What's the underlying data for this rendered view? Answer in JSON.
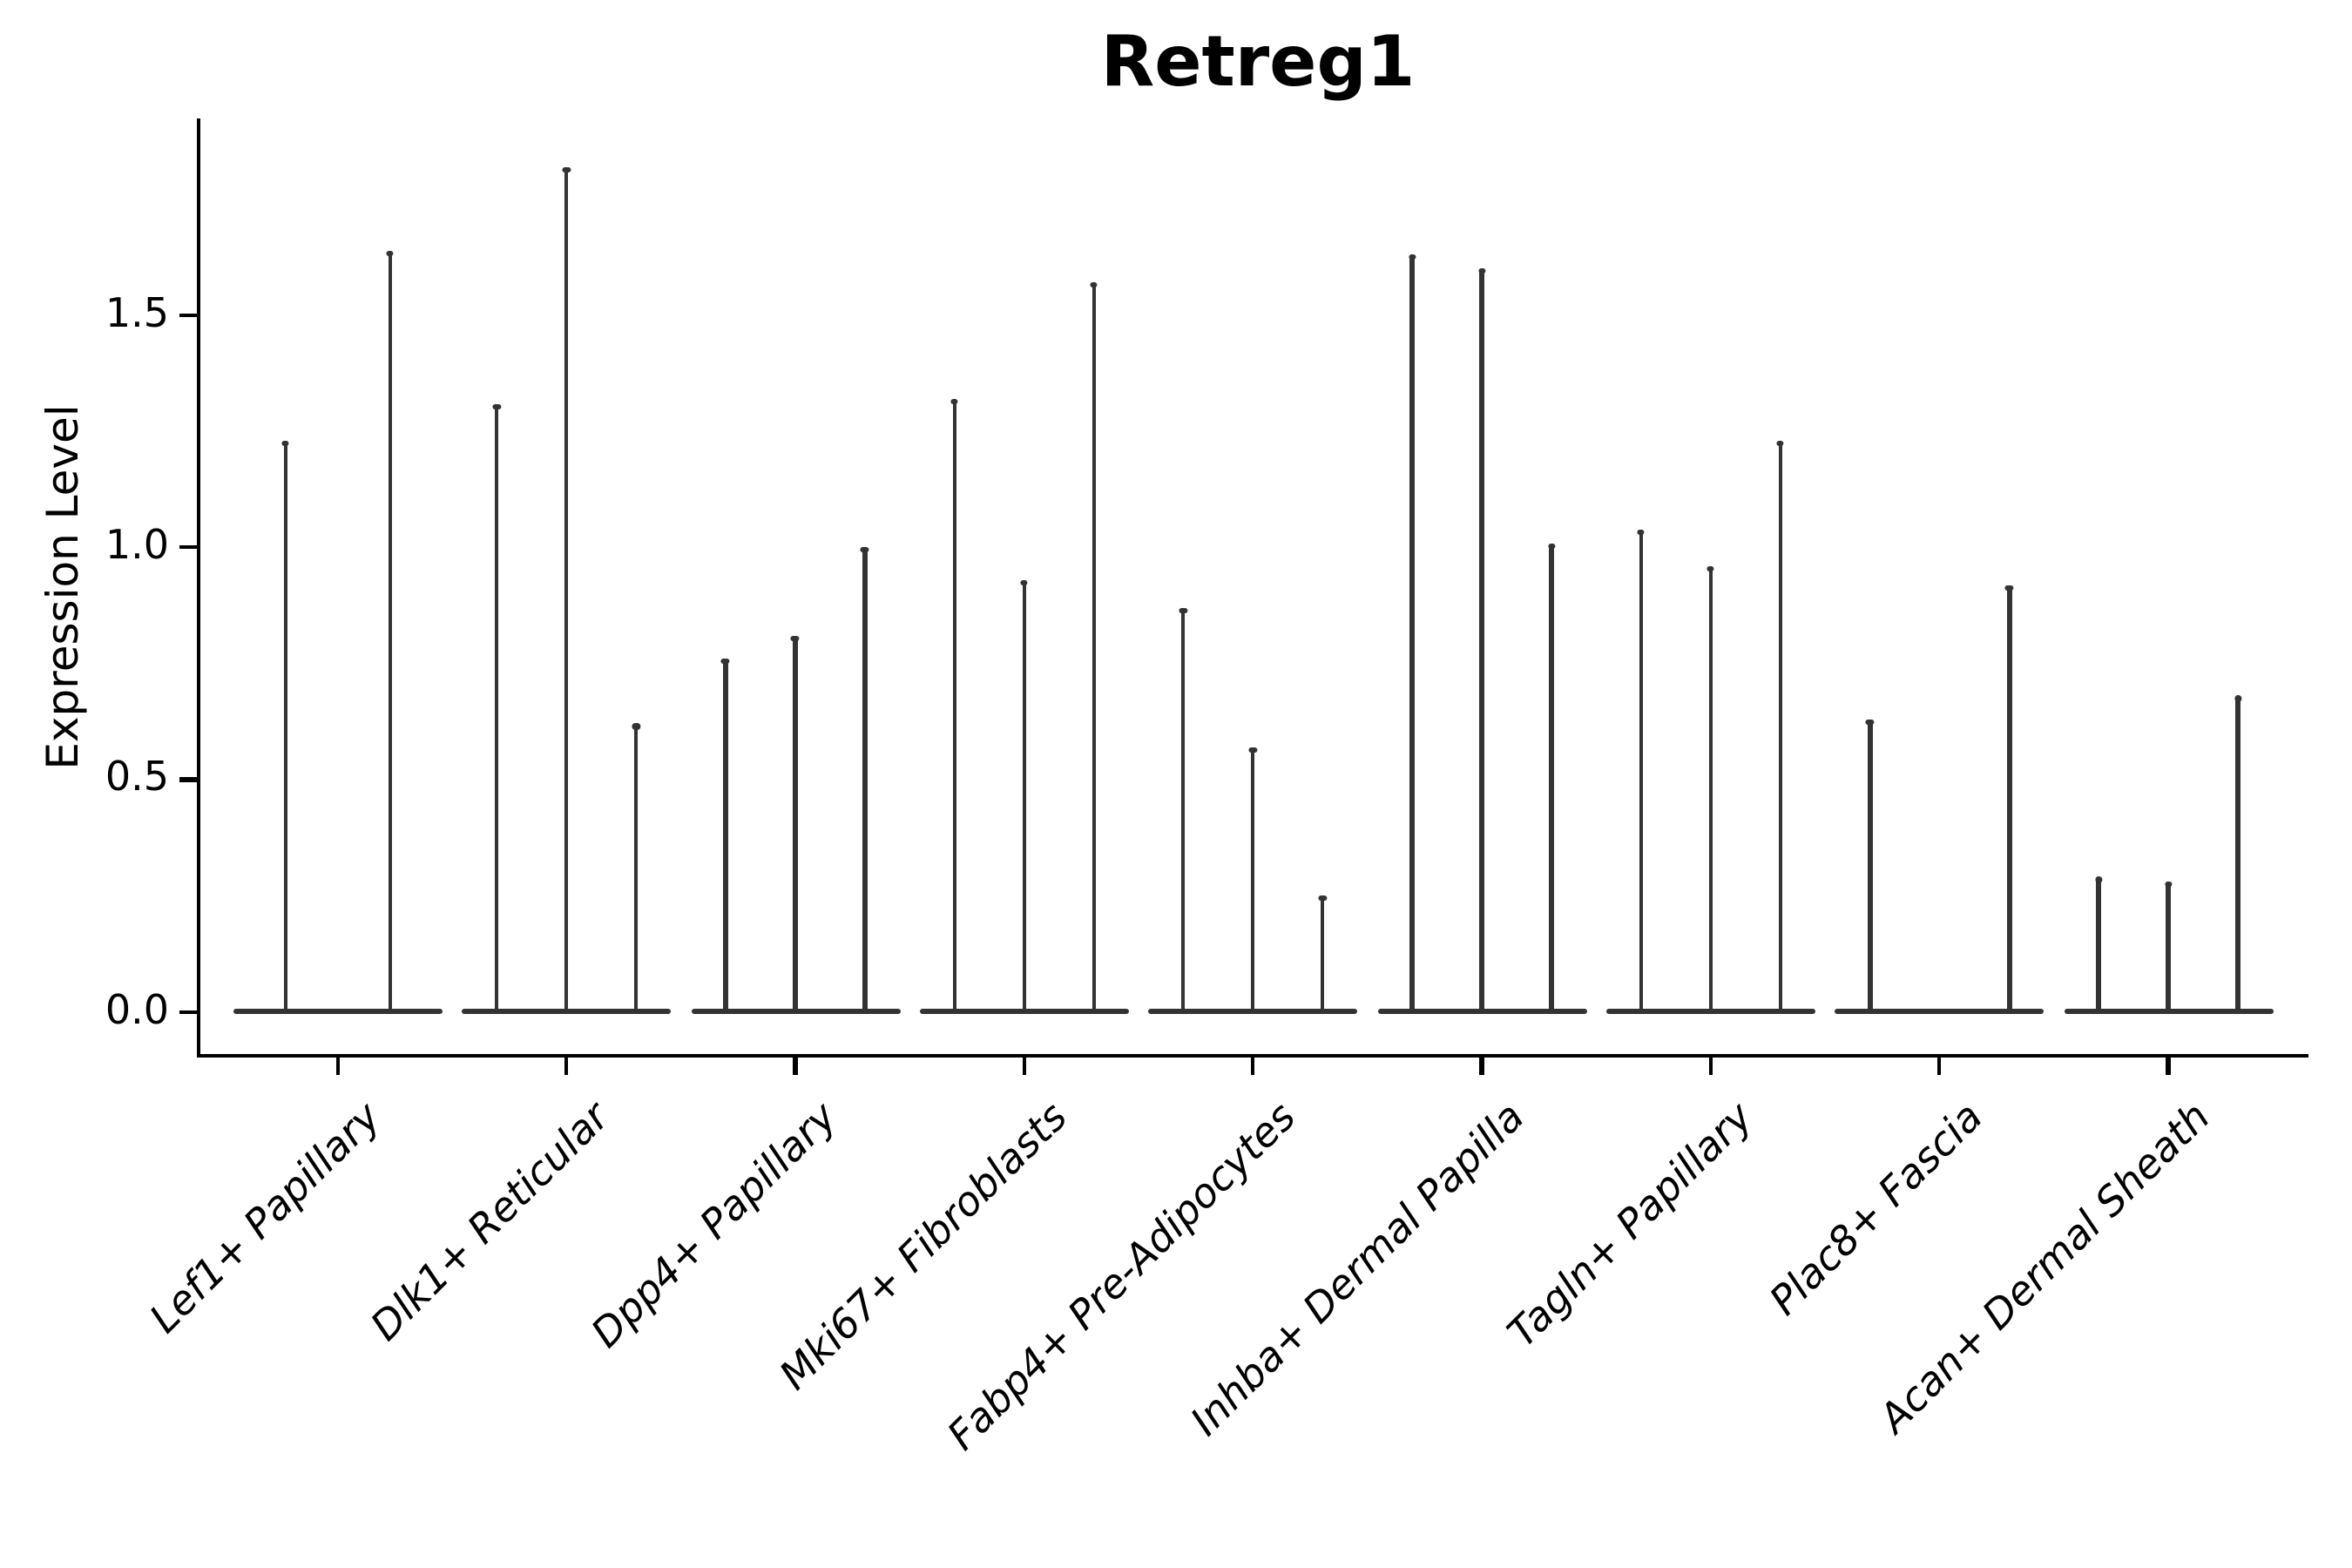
{
  "title": "Retreg1",
  "y_axis": {
    "label": "Expression Level",
    "tick_labels": [
      "0.0",
      "0.5",
      "1.0",
      "1.5"
    ]
  },
  "x_axis": {
    "categories": [
      "Lef1+ Papillary",
      "Dlk1+ Reticular",
      "Dpp4+ Papillary",
      "Mki67+ Fibroblasts",
      "Fabp4+ Pre-Adipocytes",
      "Inhba+ Dermal Papilla",
      "Tagln+ Papillary",
      "Plac8+ Fascia",
      "Acan+ Dermal Sheath"
    ]
  },
  "chart_data": {
    "type": "violin",
    "title": "Retreg1",
    "xlabel": "",
    "ylabel": "Expression Level",
    "ylim": [
      -0.09,
      1.92
    ],
    "y_ticks": [
      0.0,
      0.5,
      1.0,
      1.5
    ],
    "grid": false,
    "legend": "none",
    "note": "Each cluster shows 2-3 extremely narrow violins: a flat dense base at 0 with a hair-thin spike rising to the maximum expression value.",
    "categories": [
      {
        "label": "Lef1+ Papillary",
        "violin_maxima": [
          1.23,
          1.64
        ]
      },
      {
        "label": "Dlk1+ Reticular",
        "violin_maxima": [
          1.31,
          1.82,
          0.62
        ]
      },
      {
        "label": "Dpp4+ Papillary",
        "violin_maxima": [
          0.76,
          0.81,
          1.0
        ]
      },
      {
        "label": "Mki67+ Fibroblasts",
        "violin_maxima": [
          1.32,
          0.93,
          1.57
        ]
      },
      {
        "label": "Fabp4+ Pre-Adipocytes",
        "violin_maxima": [
          0.87,
          0.57,
          0.25
        ]
      },
      {
        "label": "Inhba+ Dermal Papilla",
        "violin_maxima": [
          1.63,
          1.6,
          1.01
        ]
      },
      {
        "label": "Tagln+ Papillary",
        "violin_maxima": [
          1.04,
          0.96,
          1.23
        ]
      },
      {
        "label": "Plac8+ Fascia",
        "violin_maxima": [
          0.63,
          0,
          0.92
        ]
      },
      {
        "label": "Acan+ Dermal Sheath",
        "violin_maxima": [
          0.29,
          0.28,
          0.68
        ]
      }
    ]
  },
  "colors": {
    "violin": "#333336",
    "axis": "#000000",
    "text": "#000000",
    "background": "#ffffff"
  }
}
